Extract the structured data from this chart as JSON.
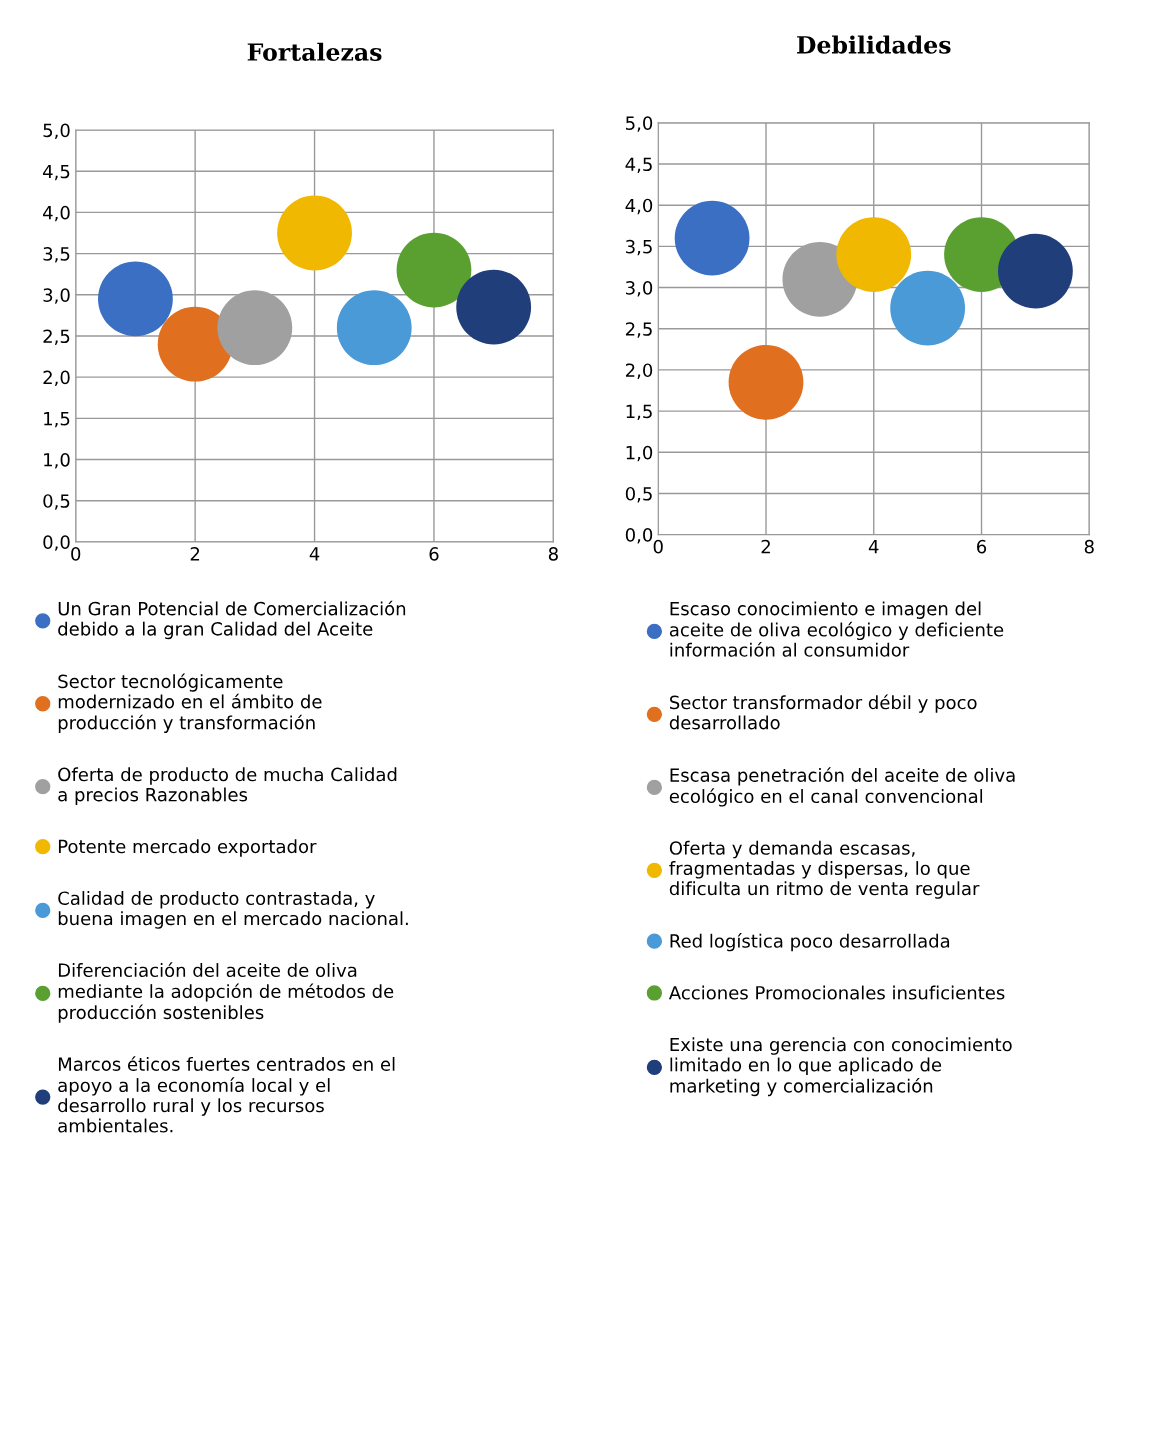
{
  "chart_data": [
    {
      "type": "bubble",
      "title": "Fortalezas",
      "xlim": [
        0,
        8
      ],
      "xticks": [
        0,
        2,
        4,
        6,
        8
      ],
      "ylim": [
        0,
        5
      ],
      "yticks": [
        {
          "value": 0,
          "label": "0,0"
        },
        {
          "value": 0.5,
          "label": "0,5"
        },
        {
          "value": 1,
          "label": "1,0"
        },
        {
          "value": 1.5,
          "label": "1,5"
        },
        {
          "value": 2,
          "label": "2,0"
        },
        {
          "value": 2.5,
          "label": "2,5"
        },
        {
          "value": 3,
          "label": "3,0"
        },
        {
          "value": 3.5,
          "label": "3,5"
        },
        {
          "value": 4,
          "label": "4,0"
        },
        {
          "value": 4.5,
          "label": "4,5"
        },
        {
          "value": 5,
          "label": "5,0"
        }
      ],
      "grid": true,
      "legend": "bottom",
      "series": [
        {
          "name": "Un Gran Potencial de Comercialización\ndebido a la gran Calidad del Aceite",
          "color": "#3a6fc4",
          "x": [
            1
          ],
          "values": [
            2.95
          ],
          "sizes": [
            1
          ]
        },
        {
          "name": "Sector tecnológicamente\nmodernizado en el ámbito de\nproducción y transformación",
          "color": "#e07020",
          "x": [
            2
          ],
          "values": [
            2.4
          ],
          "sizes": [
            1
          ]
        },
        {
          "name": "Oferta de producto de mucha Calidad\na precios Razonables",
          "color": "#a0a0a0",
          "x": [
            3
          ],
          "values": [
            2.6
          ],
          "sizes": [
            1
          ]
        },
        {
          "name": "Potente mercado exportador",
          "color": "#f0b800",
          "x": [
            4
          ],
          "values": [
            3.75
          ],
          "sizes": [
            1
          ]
        },
        {
          "name": "Calidad de producto contrastada, y\nbuena imagen en el mercado nacional.",
          "color": "#4a9ad8",
          "x": [
            5
          ],
          "values": [
            2.6
          ],
          "sizes": [
            1
          ]
        },
        {
          "name": "Diferenciación del aceite de oliva\nmediante la adopción de métodos de\nproducción sostenibles",
          "color": "#5aa030",
          "x": [
            6
          ],
          "values": [
            3.3
          ],
          "sizes": [
            1
          ]
        },
        {
          "name": "Marcos éticos fuertes centrados en el\napoyo a la economía local y el\ndesarrollo rural y los recursos\nambientales.",
          "color": "#1f3e7a",
          "x": [
            7
          ],
          "values": [
            2.85
          ],
          "sizes": [
            1
          ]
        }
      ]
    },
    {
      "type": "bubble",
      "title": "Debilidades",
      "xlim": [
        0,
        8
      ],
      "xticks": [
        0,
        2,
        4,
        6,
        8
      ],
      "ylim": [
        0,
        5
      ],
      "yticks": [
        {
          "value": 0,
          "label": "0,0"
        },
        {
          "value": 0.5,
          "label": "0,5"
        },
        {
          "value": 1,
          "label": "1,0"
        },
        {
          "value": 1.5,
          "label": "1,5"
        },
        {
          "value": 2,
          "label": "2,0"
        },
        {
          "value": 2.5,
          "label": "2,5"
        },
        {
          "value": 3,
          "label": "3,0"
        },
        {
          "value": 3.5,
          "label": "3,5"
        },
        {
          "value": 4,
          "label": "4,0"
        },
        {
          "value": 4.5,
          "label": "4,5"
        },
        {
          "value": 5,
          "label": "5,0"
        }
      ],
      "grid": true,
      "legend": "bottom",
      "series": [
        {
          "name": "Escaso conocimiento e imagen del\naceite de oliva ecológico y deficiente\ninformación al consumidor",
          "color": "#3a6fc4",
          "x": [
            1
          ],
          "values": [
            3.6
          ],
          "sizes": [
            1
          ]
        },
        {
          "name": "Sector transformador débil y poco\ndesarrollado",
          "color": "#e07020",
          "x": [
            2
          ],
          "values": [
            1.85
          ],
          "sizes": [
            1
          ]
        },
        {
          "name": "Escasa penetración del aceite de oliva\necológico en el canal convencional",
          "color": "#a0a0a0",
          "x": [
            3
          ],
          "values": [
            3.1
          ],
          "sizes": [
            1
          ]
        },
        {
          "name": "Oferta y demanda escasas,\nfragmentadas y dispersas, lo que\ndificulta un ritmo de venta regular",
          "color": "#f0b800",
          "x": [
            4
          ],
          "values": [
            3.4
          ],
          "sizes": [
            1
          ]
        },
        {
          "name": "Red logística poco desarrollada",
          "color": "#4a9ad8",
          "x": [
            5
          ],
          "values": [
            2.75
          ],
          "sizes": [
            1
          ]
        },
        {
          "name": "Acciones Promocionales insuficientes",
          "color": "#5aa030",
          "x": [
            6
          ],
          "values": [
            3.4
          ],
          "sizes": [
            1
          ]
        },
        {
          "name": "Existe una gerencia con conocimiento\nlimitado en lo que aplicado de\nmarketing y comercialización",
          "color": "#1f3e7a",
          "x": [
            7
          ],
          "values": [
            3.2
          ],
          "sizes": [
            1
          ]
        }
      ]
    }
  ]
}
